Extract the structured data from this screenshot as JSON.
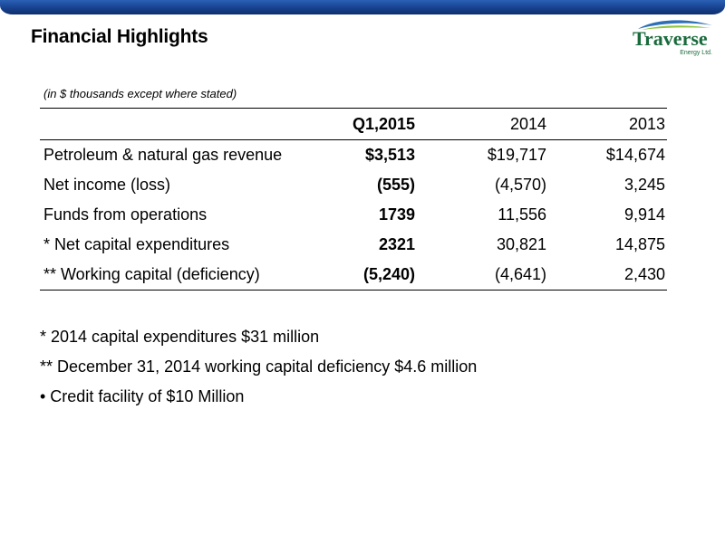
{
  "header": {
    "title": "Financial Highlights",
    "logo": {
      "name": "Traverse",
      "tagline": "Energy Ltd.",
      "colors": {
        "text": "#1a6b3c",
        "swoosh_blue": "#2d6fb7",
        "swoosh_green": "#8cc63f"
      }
    }
  },
  "subtitle": "(in $ thousands except where stated)",
  "table": {
    "columns": [
      "",
      "Q1,2015",
      "2014",
      "2013"
    ],
    "rows": [
      {
        "label": "Petroleum & natural gas revenue",
        "q1_2015": "$3,513",
        "y2014": "$19,717",
        "y2013": "$14,674"
      },
      {
        "label": "Net income (loss)",
        "q1_2015": "(555)",
        "y2014": "(4,570)",
        "y2013": "3,245"
      },
      {
        "label": "Funds from operations",
        "q1_2015": "1739",
        "y2014": "11,556",
        "y2013": "9,914"
      },
      {
        "label": "* Net capital expenditures",
        "q1_2015": "2321",
        "y2014": "30,821",
        "y2013": "14,875"
      },
      {
        "label": "** Working capital (deficiency)",
        "q1_2015": "(5,240)",
        "y2014": "(4,641)",
        "y2013": "2,430"
      }
    ]
  },
  "notes": [
    "*  2014 capital expenditures $31 million",
    "** December 31, 2014 working capital deficiency $4.6 million",
    "•  Credit facility of $10 Million"
  ],
  "theme": {
    "top_bar_color": "#17428f"
  }
}
